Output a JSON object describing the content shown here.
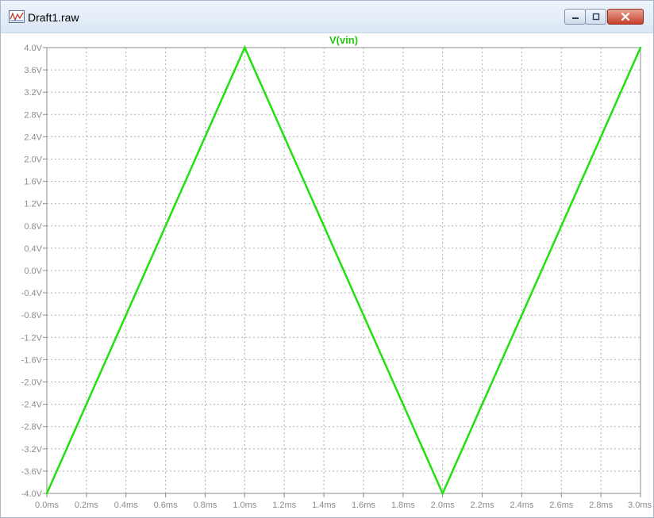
{
  "window": {
    "title": "Draft1.raw",
    "icons": {
      "app": "waveform-viewer-icon",
      "minimize": "minimize-icon",
      "maximize": "maximize-icon",
      "close": "close-icon"
    }
  },
  "colors": {
    "trace": "#22e00f",
    "trace_title": "#22c80f",
    "grid": "#b0b0b0",
    "axis_text": "#8c8c8c",
    "close_button": "#c7402b"
  },
  "chart_data": {
    "type": "line",
    "title": "V(vin)",
    "xlabel": "",
    "ylabel": "",
    "xlim": [
      0.0,
      3.0
    ],
    "ylim": [
      -4.0,
      4.0
    ],
    "grid": true,
    "x_unit": "ms",
    "y_unit": "V",
    "x_ticks": [
      "0.0ms",
      "0.2ms",
      "0.4ms",
      "0.6ms",
      "0.8ms",
      "1.0ms",
      "1.2ms",
      "1.4ms",
      "1.6ms",
      "1.8ms",
      "2.0ms",
      "2.2ms",
      "2.4ms",
      "2.6ms",
      "2.8ms",
      "3.0ms"
    ],
    "y_ticks": [
      "4.0V",
      "3.6V",
      "3.2V",
      "2.8V",
      "2.4V",
      "2.0V",
      "1.6V",
      "1.2V",
      "0.8V",
      "0.4V",
      "0.0V",
      "-0.4V",
      "-0.8V",
      "-1.2V",
      "-1.6V",
      "-2.0V",
      "-2.4V",
      "-2.8V",
      "-3.2V",
      "-3.6V",
      "-4.0V"
    ],
    "series": [
      {
        "name": "V(vin)",
        "x": [
          0.0,
          1.0,
          2.0,
          3.0
        ],
        "y": [
          -4.0,
          4.0,
          -4.0,
          4.0
        ]
      }
    ]
  }
}
